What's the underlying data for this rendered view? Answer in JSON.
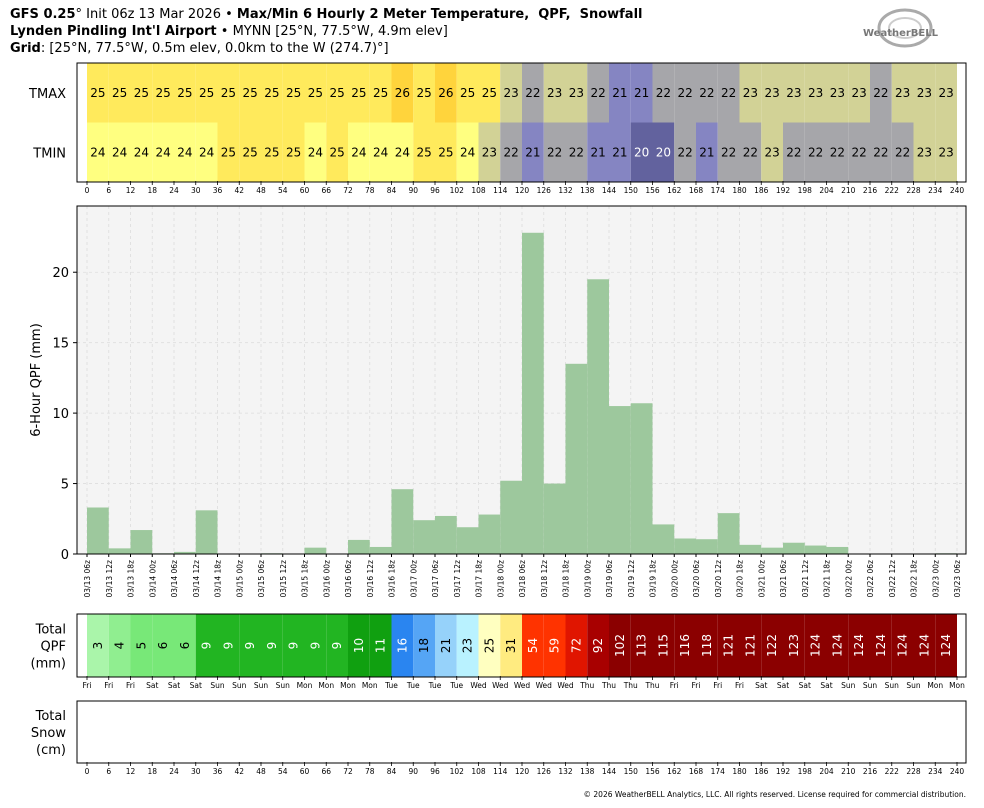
{
  "header": {
    "line1": [
      "GFS 0.25",
      "° Init 06z 13 Mar 2026 • ",
      "Max/Min 6 Hourly 2 Meter Temperature,  QPF,  Snowfall"
    ],
    "line2": [
      "Lynden Pindling Int'l Airport",
      " • MYNN [25°N, 77.5°W, 4.9m elev]"
    ],
    "line3": [
      "Grid",
      ": [25°N, 77.5°W, 0.5m elev, 0.0km to the W (274.7)°]"
    ],
    "logo": "WeatherBELL",
    "footer": "© 2026 WeatherBELL Analytics, LLC. All rights reserved. License required for commercial distribution."
  },
  "chart_data": [
    {
      "type": "heatmap",
      "series": [
        {
          "name": "TMAX",
          "values": [
            25,
            25,
            25,
            25,
            25,
            25,
            25,
            25,
            25,
            25,
            25,
            25,
            25,
            25,
            26,
            25,
            26,
            25,
            25,
            23,
            22,
            23,
            23,
            22,
            21,
            21,
            22,
            22,
            22,
            22,
            23,
            23,
            23,
            23,
            23,
            23,
            22,
            23,
            23,
            23
          ]
        },
        {
          "name": "TMIN",
          "values": [
            24,
            24,
            24,
            24,
            24,
            24,
            25,
            25,
            25,
            25,
            24,
            25,
            24,
            24,
            24,
            25,
            25,
            24,
            23,
            22,
            21,
            22,
            22,
            21,
            21,
            20,
            20,
            22,
            21,
            22,
            22,
            23,
            22,
            22,
            22,
            22,
            22,
            22,
            23,
            23
          ]
        }
      ],
      "colors": {
        "20": "#62629e",
        "21": "#8585c2",
        "22": "#a6a6aa",
        "23": "#d2d296",
        "24": "#ffff80",
        "25": "#ffea5c",
        "26": "#ffd43c"
      },
      "xlim": [
        0,
        240
      ],
      "xticks": [
        0,
        6,
        12,
        18,
        24,
        30,
        36,
        42,
        48,
        54,
        60,
        66,
        72,
        78,
        84,
        90,
        96,
        102,
        108,
        114,
        120,
        126,
        132,
        138,
        144,
        150,
        156,
        162,
        168,
        174,
        180,
        186,
        192,
        198,
        204,
        210,
        216,
        222,
        228,
        234,
        240
      ]
    },
    {
      "type": "bar",
      "ylabel": "6-Hour QPF (mm)",
      "color": "#9dc89d",
      "grid": true,
      "values": [
        3.3,
        0.4,
        1.7,
        0.05,
        0.15,
        3.1,
        0,
        0,
        0.05,
        0,
        0.45,
        0,
        1.0,
        0.5,
        4.6,
        2.4,
        2.7,
        1.9,
        2.8,
        5.2,
        22.8,
        5.0,
        13.5,
        19.5,
        10.5,
        10.7,
        2.1,
        1.1,
        1.05,
        2.9,
        0.65,
        0.45,
        0.8,
        0.6,
        0.5,
        0,
        0,
        0,
        0,
        0.05
      ],
      "ylim": [
        0,
        24.7
      ],
      "yticks": [
        0,
        5,
        10,
        15,
        20
      ],
      "xlim": [
        0,
        240
      ],
      "xticks": [
        {
          "value": 0,
          "label": "03/13 06z"
        },
        {
          "value": 6,
          "label": "03/13 12z"
        },
        {
          "value": 12,
          "label": "03/13 18z"
        },
        {
          "value": 18,
          "label": "03/14 00z"
        },
        {
          "value": 24,
          "label": "03/14 06z"
        },
        {
          "value": 30,
          "label": "03/14 12z"
        },
        {
          "value": 36,
          "label": "03/14 18z"
        },
        {
          "value": 42,
          "label": "03/15 00z"
        },
        {
          "value": 48,
          "label": "03/15 06z"
        },
        {
          "value": 54,
          "label": "03/15 12z"
        },
        {
          "value": 60,
          "label": "03/15 18z"
        },
        {
          "value": 66,
          "label": "03/16 00z"
        },
        {
          "value": 72,
          "label": "03/16 06z"
        },
        {
          "value": 78,
          "label": "03/16 12z"
        },
        {
          "value": 84,
          "label": "03/16 18z"
        },
        {
          "value": 90,
          "label": "03/17 00z"
        },
        {
          "value": 96,
          "label": "03/17 06z"
        },
        {
          "value": 102,
          "label": "03/17 12z"
        },
        {
          "value": 108,
          "label": "03/17 18z"
        },
        {
          "value": 114,
          "label": "03/18 00z"
        },
        {
          "value": 120,
          "label": "03/18 06z"
        },
        {
          "value": 126,
          "label": "03/18 12z"
        },
        {
          "value": 132,
          "label": "03/18 18z"
        },
        {
          "value": 138,
          "label": "03/19 00z"
        },
        {
          "value": 144,
          "label": "03/19 06z"
        },
        {
          "value": 150,
          "label": "03/19 12z"
        },
        {
          "value": 156,
          "label": "03/19 18z"
        },
        {
          "value": 162,
          "label": "03/20 00z"
        },
        {
          "value": 168,
          "label": "03/20 06z"
        },
        {
          "value": 174,
          "label": "03/20 12z"
        },
        {
          "value": 180,
          "label": "03/20 18z"
        },
        {
          "value": 186,
          "label": "03/21 00z"
        },
        {
          "value": 192,
          "label": "03/21 06z"
        },
        {
          "value": 198,
          "label": "03/21 12z"
        },
        {
          "value": 204,
          "label": "03/21 18z"
        },
        {
          "value": 210,
          "label": "03/22 00z"
        },
        {
          "value": 216,
          "label": "03/22 06z"
        },
        {
          "value": 222,
          "label": "03/22 12z"
        },
        {
          "value": 228,
          "label": "03/22 18z"
        },
        {
          "value": 234,
          "label": "03/23 00z"
        },
        {
          "value": 240,
          "label": "03/23 06z"
        }
      ]
    },
    {
      "type": "strip",
      "label": [
        "Total",
        "QPF",
        "(mm)"
      ],
      "values": [
        3,
        4,
        5,
        6,
        6,
        9,
        9,
        9,
        9,
        9,
        9,
        9,
        10,
        11,
        16,
        18,
        21,
        23,
        25,
        31,
        54,
        59,
        72,
        92,
        102,
        113,
        115,
        116,
        118,
        121,
        121,
        122,
        123,
        124,
        124,
        124,
        124,
        124,
        124,
        124
      ],
      "colors": [
        "#aaf5aa",
        "#90ee90",
        "#78e878",
        "#78e878",
        "#78e878",
        "#22b522",
        "#22b522",
        "#22b522",
        "#22b522",
        "#22b522",
        "#22b522",
        "#22b522",
        "#10a010",
        "#10a010",
        "#2a85f0",
        "#55a5f5",
        "#96d2fa",
        "#b9f2ff",
        "#ffffc0",
        "#ffeb80",
        "#ff3300",
        "#ff3300",
        "#e01500",
        "#a80000",
        "#8b0000",
        "#8b0000",
        "#8b0000",
        "#8b0000",
        "#8b0000",
        "#8b0000",
        "#8b0000",
        "#8b0000",
        "#8b0000",
        "#8b0000",
        "#8b0000",
        "#8b0000",
        "#8b0000",
        "#8b0000",
        "#8b0000",
        "#8b0000"
      ],
      "xlim": [
        0,
        240
      ],
      "xticks": [
        {
          "value": 0,
          "label": "Fri"
        },
        {
          "value": 6,
          "label": "Fri"
        },
        {
          "value": 12,
          "label": "Fri"
        },
        {
          "value": 18,
          "label": "Sat"
        },
        {
          "value": 24,
          "label": "Sat"
        },
        {
          "value": 30,
          "label": "Sat"
        },
        {
          "value": 36,
          "label": "Sun"
        },
        {
          "value": 42,
          "label": "Sun"
        },
        {
          "value": 48,
          "label": "Sun"
        },
        {
          "value": 54,
          "label": "Sun"
        },
        {
          "value": 60,
          "label": "Mon"
        },
        {
          "value": 66,
          "label": "Mon"
        },
        {
          "value": 72,
          "label": "Mon"
        },
        {
          "value": 78,
          "label": "Mon"
        },
        {
          "value": 84,
          "label": "Tue"
        },
        {
          "value": 90,
          "label": "Tue"
        },
        {
          "value": 96,
          "label": "Tue"
        },
        {
          "value": 102,
          "label": "Tue"
        },
        {
          "value": 108,
          "label": "Wed"
        },
        {
          "value": 114,
          "label": "Wed"
        },
        {
          "value": 120,
          "label": "Wed"
        },
        {
          "value": 126,
          "label": "Wed"
        },
        {
          "value": 132,
          "label": "Wed"
        },
        {
          "value": 138,
          "label": "Thu"
        },
        {
          "value": 144,
          "label": "Thu"
        },
        {
          "value": 150,
          "label": "Thu"
        },
        {
          "value": 156,
          "label": "Thu"
        },
        {
          "value": 162,
          "label": "Fri"
        },
        {
          "value": 168,
          "label": "Fri"
        },
        {
          "value": 174,
          "label": "Fri"
        },
        {
          "value": 180,
          "label": "Fri"
        },
        {
          "value": 186,
          "label": "Sat"
        },
        {
          "value": 192,
          "label": "Sat"
        },
        {
          "value": 198,
          "label": "Sat"
        },
        {
          "value": 204,
          "label": "Sat"
        },
        {
          "value": 210,
          "label": "Sun"
        },
        {
          "value": 216,
          "label": "Sun"
        },
        {
          "value": 222,
          "label": "Sun"
        },
        {
          "value": 228,
          "label": "Sun"
        },
        {
          "value": 234,
          "label": "Mon"
        },
        {
          "value": 240,
          "label": "Mon"
        }
      ]
    },
    {
      "type": "strip",
      "label": [
        "Total",
        "Snow",
        "(cm)"
      ],
      "values": [],
      "colors": [],
      "xlim": [
        0,
        240
      ],
      "xticks": [
        0,
        6,
        12,
        18,
        24,
        30,
        36,
        42,
        48,
        54,
        60,
        66,
        72,
        78,
        84,
        90,
        96,
        102,
        108,
        114,
        120,
        126,
        132,
        138,
        144,
        150,
        156,
        162,
        168,
        174,
        180,
        186,
        192,
        198,
        204,
        210,
        216,
        222,
        228,
        234,
        240
      ]
    }
  ]
}
